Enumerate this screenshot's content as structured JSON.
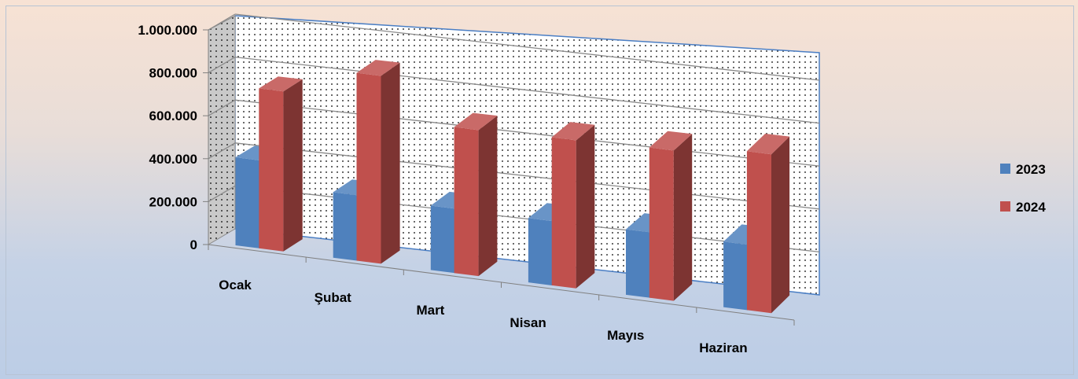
{
  "chart_data": {
    "type": "bar",
    "categories": [
      "Ocak",
      "Şubat",
      "Mart",
      "Nisan",
      "Mayıs",
      "Haziran"
    ],
    "series": [
      {
        "name": "2023",
        "values": [
          410000,
          305000,
          300000,
          300000,
          305000,
          305000
        ],
        "color": "#4f81bd"
      },
      {
        "name": "2024",
        "values": [
          745000,
          875000,
          680000,
          690000,
          700000,
          740000
        ],
        "color": "#c0504d"
      }
    ],
    "ylim": [
      0,
      1000000
    ],
    "yticks": [
      "0",
      "200.000",
      "400.000",
      "600.000",
      "800.000",
      "1.000.000"
    ],
    "grid": true,
    "legend_position": "right",
    "style": "3d-clustered-column"
  }
}
